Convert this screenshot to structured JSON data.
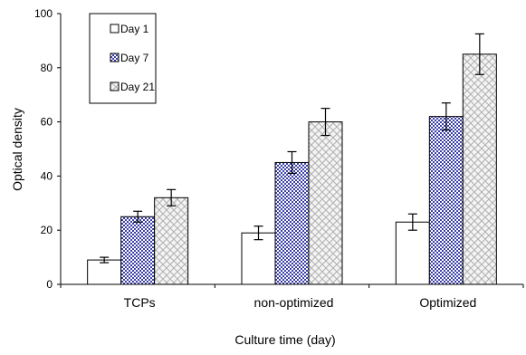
{
  "chart_data": {
    "type": "bar",
    "title": "",
    "xlabel": "Culture time (day)",
    "ylabel": "Optical density",
    "ylim": [
      0,
      100
    ],
    "yticks": [
      0,
      20,
      40,
      60,
      80,
      100
    ],
    "categories": [
      "TCPs",
      "non-optimized",
      "Optimized"
    ],
    "series": [
      {
        "name": "Day 1",
        "values": [
          9,
          19,
          23
        ],
        "errors": [
          1,
          2.5,
          3
        ],
        "fill": "#ffffff",
        "pattern": "none"
      },
      {
        "name": "Day 7",
        "values": [
          25,
          45,
          62
        ],
        "errors": [
          2,
          4,
          5
        ],
        "fill": "#3a3fa8",
        "pattern": "checker"
      },
      {
        "name": "Day 21",
        "values": [
          32,
          60,
          85
        ],
        "errors": [
          3,
          5,
          7.5
        ],
        "fill": "#c8c8c8",
        "pattern": "crosshatch"
      }
    ],
    "grid": false,
    "legend_position": "top-left"
  }
}
